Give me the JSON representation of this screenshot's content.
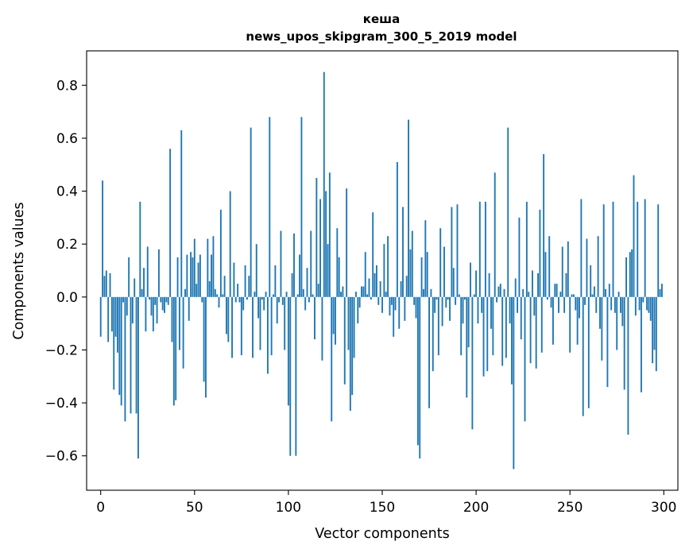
{
  "chart_data": {
    "type": "bar",
    "title_line1": "кеша",
    "title_line2": "news_upos_skipgram_300_5_2019 model",
    "xlabel": "Vector components",
    "ylabel": "Components values",
    "xlim": [
      -7.5,
      307.5
    ],
    "ylim": [
      -0.73,
      0.93
    ],
    "x_ticks": [
      0,
      50,
      100,
      150,
      200,
      250,
      300
    ],
    "x_tick_labels": [
      "0",
      "50",
      "100",
      "150",
      "200",
      "250",
      "300"
    ],
    "y_ticks": [
      -0.6,
      -0.4,
      -0.2,
      0.0,
      0.2,
      0.4,
      0.6,
      0.8
    ],
    "y_tick_labels": [
      "−0.6",
      "−0.4",
      "−0.2",
      "0.0",
      "0.2",
      "0.4",
      "0.6",
      "0.8"
    ],
    "bar_color": "#1f77b4",
    "values": [
      -0.15,
      0.44,
      0.08,
      0.1,
      -0.17,
      0.09,
      -0.13,
      -0.35,
      -0.15,
      -0.21,
      -0.37,
      -0.41,
      -0.02,
      -0.47,
      -0.07,
      0.15,
      -0.44,
      -0.1,
      0.07,
      -0.44,
      -0.61,
      0.36,
      0.03,
      0.11,
      -0.13,
      0.19,
      -0.01,
      -0.07,
      -0.13,
      -0.03,
      -0.1,
      0.18,
      -0.02,
      -0.05,
      -0.06,
      -0.02,
      -0.03,
      0.56,
      -0.17,
      -0.41,
      -0.39,
      0.15,
      -0.2,
      0.63,
      -0.27,
      0.03,
      0.16,
      -0.09,
      0.17,
      0.15,
      0.22,
      0.05,
      0.13,
      0.16,
      -0.02,
      -0.32,
      -0.38,
      0.22,
      0.06,
      0.16,
      0.23,
      0.03,
      0.01,
      -0.04,
      0.33,
      0.01,
      0.08,
      -0.14,
      -0.17,
      0.4,
      -0.23,
      0.13,
      -0.02,
      0.05,
      -0.02,
      -0.22,
      -0.05,
      0.12,
      -0.01,
      0.08,
      0.64,
      -0.23,
      0.02,
      0.2,
      -0.08,
      -0.2,
      -0.01,
      -0.05,
      0.02,
      -0.29,
      0.68,
      -0.22,
      0.01,
      0.12,
      -0.1,
      -0.02,
      0.25,
      -0.03,
      -0.2,
      0.02,
      -0.41,
      -0.6,
      0.09,
      0.24,
      -0.6,
      0.01,
      0.16,
      0.68,
      0.03,
      -0.05,
      0.11,
      -0.02,
      0.25,
      0.01,
      -0.16,
      0.45,
      0.05,
      0.37,
      -0.24,
      0.85,
      0.4,
      0.2,
      0.47,
      -0.47,
      -0.14,
      -0.18,
      0.26,
      0.15,
      0.02,
      0.04,
      -0.33,
      0.41,
      -0.2,
      -0.43,
      -0.37,
      -0.23,
      0.02,
      -0.1,
      -0.04,
      0.04,
      0.04,
      0.17,
      0.01,
      0.07,
      -0.01,
      0.32,
      0.09,
      0.12,
      -0.03,
      0.06,
      -0.06,
      0.2,
      0.02,
      0.23,
      -0.07,
      -0.03,
      -0.15,
      -0.05,
      0.51,
      -0.12,
      0.06,
      0.34,
      -0.09,
      0.08,
      0.67,
      0.18,
      0.25,
      -0.03,
      -0.08,
      -0.56,
      -0.61,
      0.15,
      0.03,
      0.29,
      0.17,
      -0.42,
      0.03,
      -0.28,
      -0.06,
      -0.01,
      -0.22,
      0.26,
      -0.11,
      0.19,
      -0.04,
      -0.01,
      -0.09,
      0.34,
      0.11,
      -0.03,
      0.35,
      0.01,
      -0.22,
      -0.1,
      -0.01,
      -0.38,
      -0.19,
      0.13,
      -0.5,
      0.01,
      0.1,
      -0.1,
      0.36,
      -0.06,
      -0.3,
      0.36,
      -0.28,
      0.09,
      -0.12,
      -0.22,
      0.47,
      -0.02,
      0.04,
      0.05,
      -0.26,
      0.03,
      -0.23,
      0.64,
      -0.1,
      -0.33,
      -0.65,
      0.07,
      -0.06,
      0.3,
      -0.16,
      0.03,
      -0.47,
      0.36,
      0.02,
      -0.25,
      0.1,
      -0.07,
      -0.27,
      0.09,
      0.33,
      -0.21,
      0.54,
      0.17,
      -0.01,
      0.23,
      -0.04,
      -0.18,
      0.05,
      0.05,
      -0.06,
      0.02,
      0.19,
      -0.06,
      0.09,
      0.21,
      -0.21,
      0.01,
      0.01,
      -0.05,
      -0.18,
      -0.08,
      0.37,
      -0.45,
      -0.03,
      0.22,
      -0.42,
      0.12,
      0.01,
      0.04,
      -0.06,
      0.23,
      -0.12,
      -0.24,
      0.35,
      0.03,
      -0.34,
      0.05,
      -0.05,
      0.36,
      -0.06,
      -0.2,
      0.02,
      -0.06,
      -0.11,
      -0.35,
      0.15,
      -0.52,
      0.17,
      0.18,
      0.46,
      -0.07,
      0.36,
      -0.05,
      -0.36,
      -0.02,
      0.37,
      -0.05,
      -0.06,
      -0.09,
      -0.25,
      -0.2,
      -0.28,
      0.35,
      0.03,
      0.05
    ]
  }
}
